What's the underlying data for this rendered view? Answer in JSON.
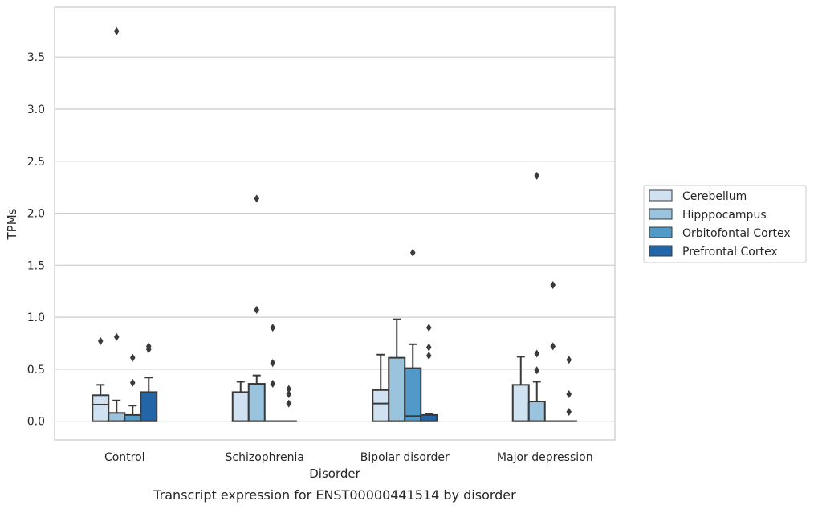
{
  "chart_data": {
    "type": "box",
    "caption": "Transcript expression for ENST00000441514 by disorder",
    "xlabel": "Disorder",
    "ylabel": "TPMs",
    "ylim": [
      -0.18,
      3.98
    ],
    "yticks": [
      "0.0",
      "0.5",
      "1.0",
      "1.5",
      "2.0",
      "2.5",
      "3.0",
      "3.5"
    ],
    "grid": true,
    "legend_position": "right",
    "categories": [
      "Control",
      "Schizophrenia",
      "Bipolar disorder",
      "Major depression"
    ],
    "series": [
      {
        "name": "Cerebellum",
        "color": "#d0e1f2",
        "boxes": [
          {
            "whisker_low": 0.0,
            "q1": 0.0,
            "median": 0.16,
            "q3": 0.25,
            "whisker_high": 0.35,
            "outliers": [
              0.77
            ]
          },
          {
            "whisker_low": 0.0,
            "q1": 0.0,
            "median": 0.0,
            "q3": 0.28,
            "whisker_high": 0.38,
            "outliers": []
          },
          {
            "whisker_low": 0.0,
            "q1": 0.0,
            "median": 0.17,
            "q3": 0.3,
            "whisker_high": 0.64,
            "outliers": []
          },
          {
            "whisker_low": 0.0,
            "q1": 0.0,
            "median": 0.0,
            "q3": 0.35,
            "whisker_high": 0.62,
            "outliers": []
          }
        ]
      },
      {
        "name": "Hipppocampus",
        "color": "#9ac3dd",
        "boxes": [
          {
            "whisker_low": 0.0,
            "q1": 0.0,
            "median": 0.0,
            "q3": 0.08,
            "whisker_high": 0.2,
            "outliers": [
              0.81,
              3.75
            ]
          },
          {
            "whisker_low": 0.0,
            "q1": 0.0,
            "median": 0.0,
            "q3": 0.36,
            "whisker_high": 0.44,
            "outliers": [
              1.07,
              2.14
            ]
          },
          {
            "whisker_low": 0.0,
            "q1": 0.0,
            "median": 0.0,
            "q3": 0.61,
            "whisker_high": 0.98,
            "outliers": []
          },
          {
            "whisker_low": 0.0,
            "q1": 0.0,
            "median": 0.0,
            "q3": 0.19,
            "whisker_high": 0.38,
            "outliers": [
              0.49,
              0.65,
              2.36
            ]
          }
        ]
      },
      {
        "name": "Orbitofontal Cortex",
        "color": "#5199c7",
        "boxes": [
          {
            "whisker_low": 0.0,
            "q1": 0.0,
            "median": 0.0,
            "q3": 0.06,
            "whisker_high": 0.15,
            "outliers": [
              0.37,
              0.61
            ]
          },
          {
            "whisker_low": 0.0,
            "q1": 0.0,
            "median": 0.0,
            "q3": 0.0,
            "whisker_high": 0.0,
            "outliers": [
              0.36,
              0.56,
              0.9
            ]
          },
          {
            "whisker_low": 0.0,
            "q1": 0.0,
            "median": 0.05,
            "q3": 0.51,
            "whisker_high": 0.74,
            "outliers": [
              1.62
            ]
          },
          {
            "whisker_low": 0.0,
            "q1": 0.0,
            "median": 0.0,
            "q3": 0.0,
            "whisker_high": 0.0,
            "outliers": [
              0.72,
              1.31
            ]
          }
        ]
      },
      {
        "name": "Prefrontal Cortex",
        "color": "#2366a8",
        "boxes": [
          {
            "whisker_low": 0.0,
            "q1": 0.0,
            "median": 0.0,
            "q3": 0.28,
            "whisker_high": 0.42,
            "outliers": [
              0.69,
              0.72
            ]
          },
          {
            "whisker_low": 0.0,
            "q1": 0.0,
            "median": 0.0,
            "q3": 0.0,
            "whisker_high": 0.0,
            "outliers": [
              0.17,
              0.26,
              0.31
            ]
          },
          {
            "whisker_low": 0.0,
            "q1": 0.0,
            "median": 0.0,
            "q3": 0.06,
            "whisker_high": 0.07,
            "outliers": [
              0.63,
              0.71,
              0.9
            ]
          },
          {
            "whisker_low": 0.0,
            "q1": 0.0,
            "median": 0.0,
            "q3": 0.0,
            "whisker_high": 0.0,
            "outliers": [
              0.09,
              0.26,
              0.59
            ]
          }
        ]
      }
    ]
  }
}
